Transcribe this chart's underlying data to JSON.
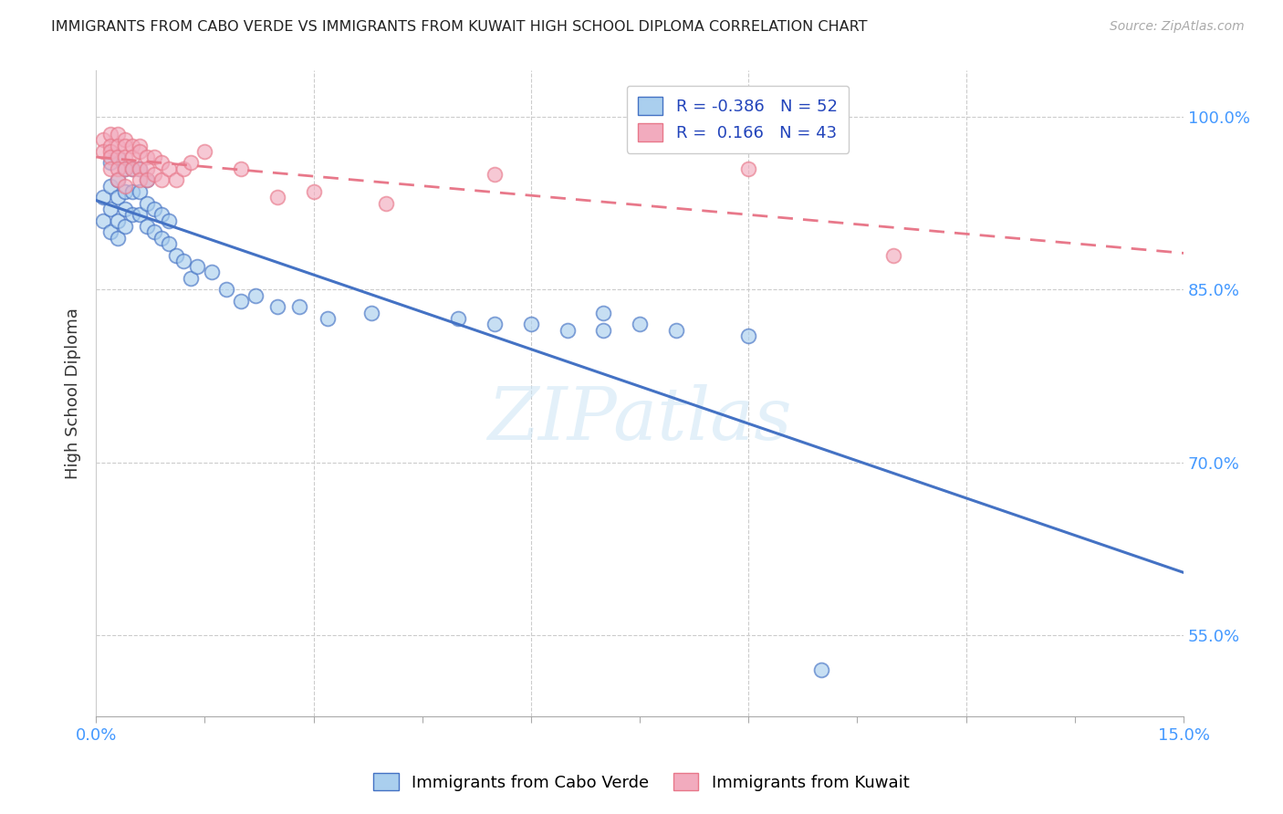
{
  "title": "IMMIGRANTS FROM CABO VERDE VS IMMIGRANTS FROM KUWAIT HIGH SCHOOL DIPLOMA CORRELATION CHART",
  "source": "Source: ZipAtlas.com",
  "ylabel": "High School Diploma",
  "xlim": [
    0.0,
    0.15
  ],
  "ylim": [
    0.48,
    1.04
  ],
  "xticks": [
    0.0,
    0.015,
    0.03,
    0.045,
    0.06,
    0.075,
    0.09,
    0.105,
    0.12,
    0.135,
    0.15
  ],
  "xticklabels": [
    "0.0%",
    "",
    "",
    "",
    "",
    "",
    "",
    "",
    "",
    "",
    "15.0%"
  ],
  "yticks": [
    0.55,
    0.7,
    0.85,
    1.0
  ],
  "yticklabels": [
    "55.0%",
    "70.0%",
    "85.0%",
    "100.0%"
  ],
  "cabo_verde_R": -0.386,
  "cabo_verde_N": 52,
  "kuwait_R": 0.166,
  "kuwait_N": 43,
  "cabo_verde_color": "#aacfee",
  "kuwait_color": "#f2abbe",
  "cabo_verde_line_color": "#4472c4",
  "kuwait_line_color": "#e8788a",
  "watermark": "ZIPatlas",
  "cabo_verde_x": [
    0.001,
    0.001,
    0.002,
    0.002,
    0.002,
    0.002,
    0.003,
    0.003,
    0.003,
    0.003,
    0.003,
    0.004,
    0.004,
    0.004,
    0.004,
    0.005,
    0.005,
    0.005,
    0.006,
    0.006,
    0.006,
    0.007,
    0.007,
    0.007,
    0.008,
    0.008,
    0.009,
    0.009,
    0.01,
    0.01,
    0.011,
    0.012,
    0.013,
    0.014,
    0.016,
    0.018,
    0.02,
    0.022,
    0.025,
    0.028,
    0.032,
    0.038,
    0.05,
    0.055,
    0.06,
    0.065,
    0.07,
    0.075,
    0.08,
    0.09,
    0.1,
    0.07
  ],
  "cabo_verde_y": [
    0.93,
    0.91,
    0.96,
    0.94,
    0.92,
    0.9,
    0.965,
    0.945,
    0.93,
    0.91,
    0.895,
    0.955,
    0.935,
    0.92,
    0.905,
    0.955,
    0.935,
    0.915,
    0.955,
    0.935,
    0.915,
    0.945,
    0.925,
    0.905,
    0.92,
    0.9,
    0.915,
    0.895,
    0.91,
    0.89,
    0.88,
    0.875,
    0.86,
    0.87,
    0.865,
    0.85,
    0.84,
    0.845,
    0.835,
    0.835,
    0.825,
    0.83,
    0.825,
    0.82,
    0.82,
    0.815,
    0.815,
    0.82,
    0.815,
    0.81,
    0.52,
    0.83
  ],
  "kuwait_x": [
    0.001,
    0.001,
    0.002,
    0.002,
    0.002,
    0.002,
    0.002,
    0.003,
    0.003,
    0.003,
    0.003,
    0.003,
    0.004,
    0.004,
    0.004,
    0.004,
    0.004,
    0.005,
    0.005,
    0.005,
    0.006,
    0.006,
    0.006,
    0.006,
    0.007,
    0.007,
    0.007,
    0.008,
    0.008,
    0.009,
    0.009,
    0.01,
    0.011,
    0.012,
    0.013,
    0.015,
    0.02,
    0.025,
    0.03,
    0.04,
    0.055,
    0.09,
    0.11
  ],
  "kuwait_y": [
    0.98,
    0.97,
    0.985,
    0.975,
    0.97,
    0.965,
    0.955,
    0.985,
    0.975,
    0.965,
    0.955,
    0.945,
    0.98,
    0.975,
    0.965,
    0.955,
    0.94,
    0.975,
    0.965,
    0.955,
    0.975,
    0.97,
    0.955,
    0.945,
    0.965,
    0.955,
    0.945,
    0.965,
    0.95,
    0.96,
    0.945,
    0.955,
    0.945,
    0.955,
    0.96,
    0.97,
    0.955,
    0.93,
    0.935,
    0.925,
    0.95,
    0.955,
    0.88
  ]
}
